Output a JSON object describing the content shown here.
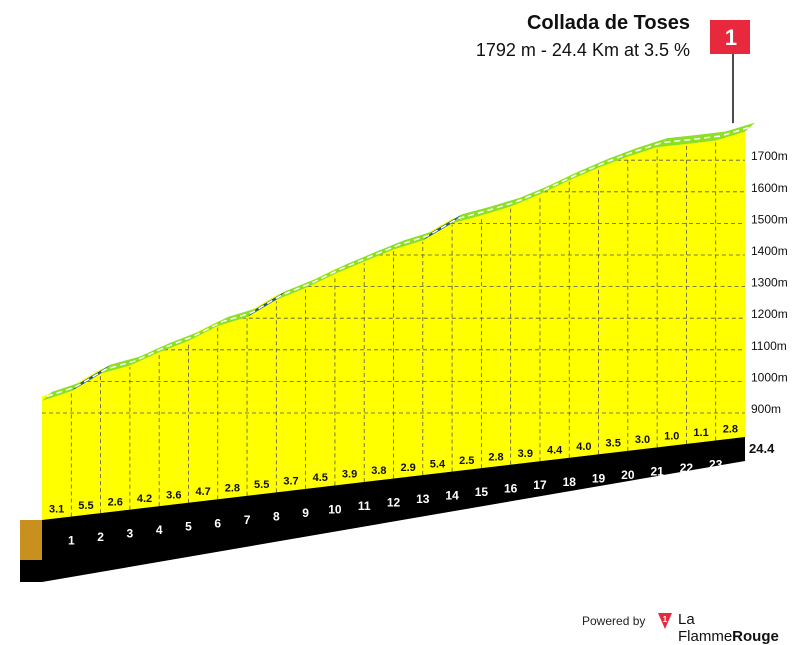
{
  "chart_data": {
    "type": "area",
    "title": "Collada de Toses",
    "subtitle": "1792 m - 24.4 Km at 3.5 %",
    "km_labels": [
      "1",
      "2",
      "3",
      "4",
      "5",
      "6",
      "7",
      "8",
      "9",
      "10",
      "11",
      "12",
      "13",
      "14",
      "15",
      "16",
      "17",
      "18",
      "19",
      "20",
      "21",
      "22",
      "23"
    ],
    "total_km_label": "24.4",
    "gradients": [
      3.1,
      5.5,
      2.6,
      4.2,
      3.6,
      4.7,
      2.8,
      5.5,
      3.7,
      4.5,
      3.9,
      3.8,
      2.9,
      5.4,
      2.5,
      2.8,
      3.9,
      4.4,
      4.0,
      3.5,
      3.0,
      1.0,
      1.1,
      2.8
    ],
    "gradient_labels": [
      "3.1",
      "5.5",
      "2.6",
      "4.2",
      "3.6",
      "4.7",
      "2.8",
      "5.5",
      "3.7",
      "4.5",
      "3.9",
      "3.8",
      "2.9",
      "5.4",
      "2.5",
      "2.8",
      "3.9",
      "4.4",
      "4.0",
      "3.5",
      "3.0",
      "1.0",
      "1.1",
      "2.8"
    ],
    "altitude_ticks": [
      900,
      1000,
      1100,
      1200,
      1300,
      1400,
      1500,
      1600,
      1700
    ],
    "altitude_tick_labels": [
      "900m",
      "1000m",
      "1100m",
      "1200m",
      "1300m",
      "1400m",
      "1500m",
      "1600m",
      "1700m"
    ],
    "ylim": [
      740,
      1800
    ],
    "summit_marker": "1",
    "colors": {
      "fill": "#ffff00",
      "side": "#c8901f",
      "base": "#000000",
      "road_green": "#8be024",
      "road_blue": "#1d5a83",
      "marker": "#e8283c"
    }
  },
  "footer": {
    "powered_by": "Powered by",
    "brand_first": "La Flamme",
    "brand_second": "Rouge"
  }
}
